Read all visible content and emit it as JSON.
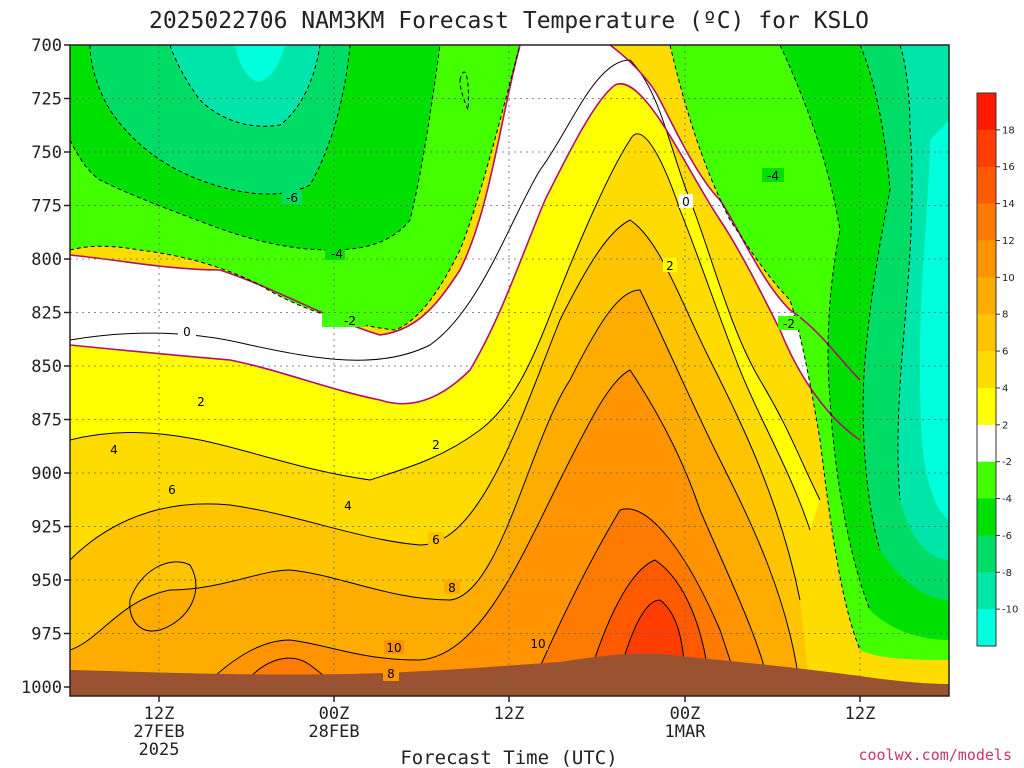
{
  "chart_data": {
    "type": "contour",
    "title": "2025022706 NAM3KM Forecast Temperature (ºC) for KSLO",
    "xlabel": "Forecast Time (UTC)",
    "credit": "coolwx.com/models",
    "credit_color": "#cc3366",
    "y_axis": {
      "unit": "hPa",
      "ticks": [
        "700",
        "725",
        "750",
        "775",
        "800",
        "825",
        "850",
        "875",
        "900",
        "925",
        "950",
        "975",
        "1000"
      ],
      "inverted": true
    },
    "x_axis": {
      "ticks": [
        {
          "label": "12Z",
          "sub": [
            "27FEB",
            "2025"
          ]
        },
        {
          "label": "00Z",
          "sub": [
            "28FEB"
          ]
        },
        {
          "label": "12Z",
          "sub": []
        },
        {
          "label": "00Z",
          "sub": [
            "1MAR"
          ]
        },
        {
          "label": "12Z",
          "sub": []
        }
      ]
    },
    "grid": true,
    "colorbar": {
      "levels": [
        "18",
        "16",
        "14",
        "12",
        "10",
        "8",
        "6",
        "4",
        "2",
        "-2",
        "-4",
        "-6",
        "-8",
        "-10"
      ],
      "colors": [
        "#ff1a00",
        "#ff3d00",
        "#ff5a00",
        "#ff7a00",
        "#ff9400",
        "#ffac00",
        "#ffc400",
        "#ffdc00",
        "#ffff00",
        "#ffffff",
        "#44ff00",
        "#00e000",
        "#00dd66",
        "#00e6aa",
        "#00ffdd"
      ]
    },
    "contour_labels": [
      "0",
      "2",
      "4",
      "6",
      "8",
      "10",
      "-2",
      "-4",
      "-6",
      "0",
      "2",
      "4",
      "6",
      "8",
      "10",
      "2",
      "-2",
      "-4",
      "0",
      "2",
      "8"
    ],
    "terrain_color": "#9a5230"
  }
}
